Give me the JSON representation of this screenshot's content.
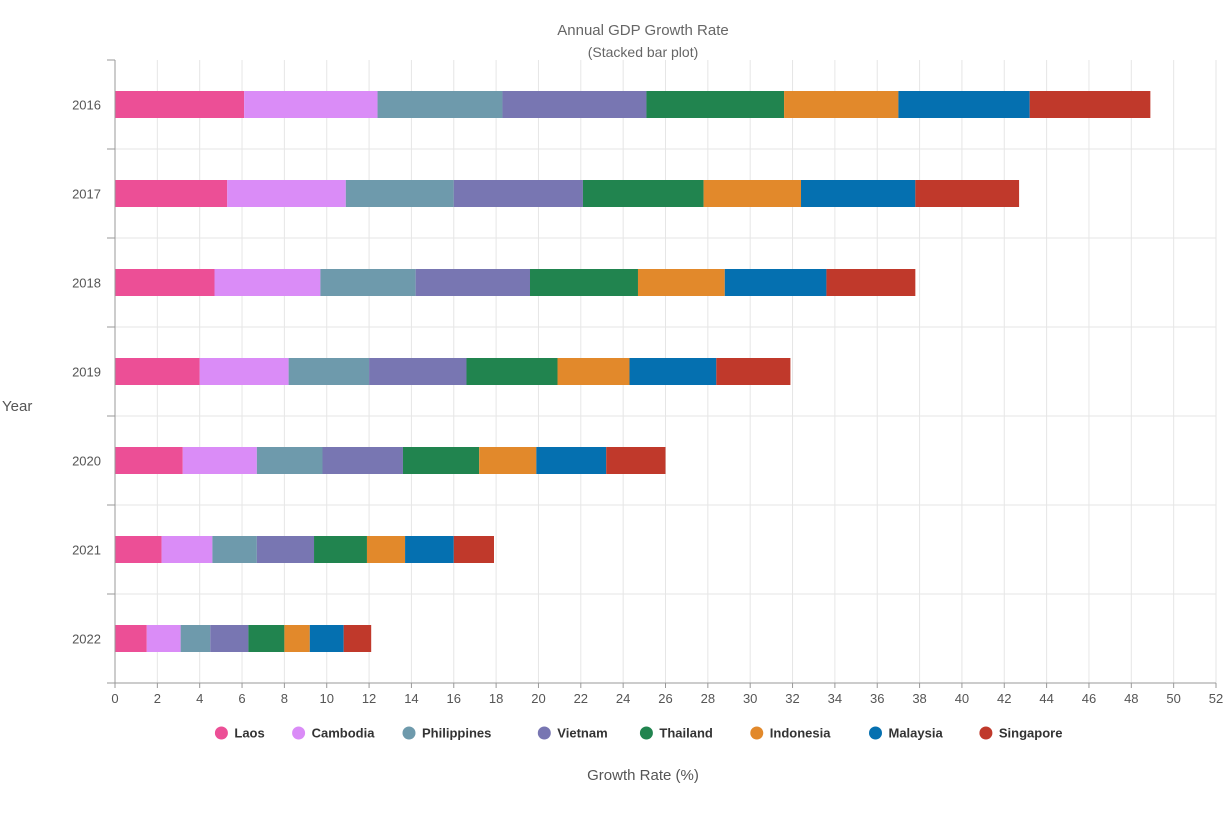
{
  "chart_data": {
    "type": "bar",
    "orientation": "horizontal",
    "stacked": true,
    "title": "Annual GDP Growth Rate",
    "subtitle": "(Stacked bar plot)",
    "xlabel": "Growth Rate (%)",
    "ylabel": "Year",
    "xlim": [
      0,
      52
    ],
    "xticks": [
      0,
      2,
      4,
      6,
      8,
      10,
      12,
      14,
      16,
      18,
      20,
      22,
      24,
      26,
      28,
      30,
      32,
      34,
      36,
      38,
      40,
      42,
      44,
      46,
      48,
      50,
      52
    ],
    "grid": true,
    "legend_position": "bottom",
    "categories": [
      "2016",
      "2017",
      "2018",
      "2019",
      "2020",
      "2021",
      "2022"
    ],
    "series": [
      {
        "name": "Laos",
        "color": "#ec4f96",
        "values": [
          6.1,
          5.3,
          4.7,
          4.0,
          3.2,
          2.2,
          1.5
        ]
      },
      {
        "name": "Cambodia",
        "color": "#da8cf7",
        "values": [
          6.3,
          5.6,
          5.0,
          4.2,
          3.5,
          2.4,
          1.6
        ]
      },
      {
        "name": "Philippines",
        "color": "#6e9aac",
        "values": [
          5.9,
          5.1,
          4.5,
          3.8,
          3.1,
          2.1,
          1.4
        ]
      },
      {
        "name": "Vietnam",
        "color": "#7876b2",
        "values": [
          6.8,
          6.1,
          5.4,
          4.6,
          3.8,
          2.7,
          1.8
        ]
      },
      {
        "name": "Thailand",
        "color": "#21844f",
        "values": [
          6.5,
          5.7,
          5.1,
          4.3,
          3.6,
          2.5,
          1.7
        ]
      },
      {
        "name": "Indonesia",
        "color": "#e2892b",
        "values": [
          5.4,
          4.6,
          4.1,
          3.4,
          2.7,
          1.8,
          1.2
        ]
      },
      {
        "name": "Malaysia",
        "color": "#0570b0",
        "values": [
          6.2,
          5.4,
          4.8,
          4.1,
          3.3,
          2.3,
          1.6
        ]
      },
      {
        "name": "Singapore",
        "color": "#c0392b",
        "values": [
          5.7,
          4.9,
          4.2,
          3.5,
          2.8,
          1.9,
          1.3
        ]
      }
    ]
  }
}
